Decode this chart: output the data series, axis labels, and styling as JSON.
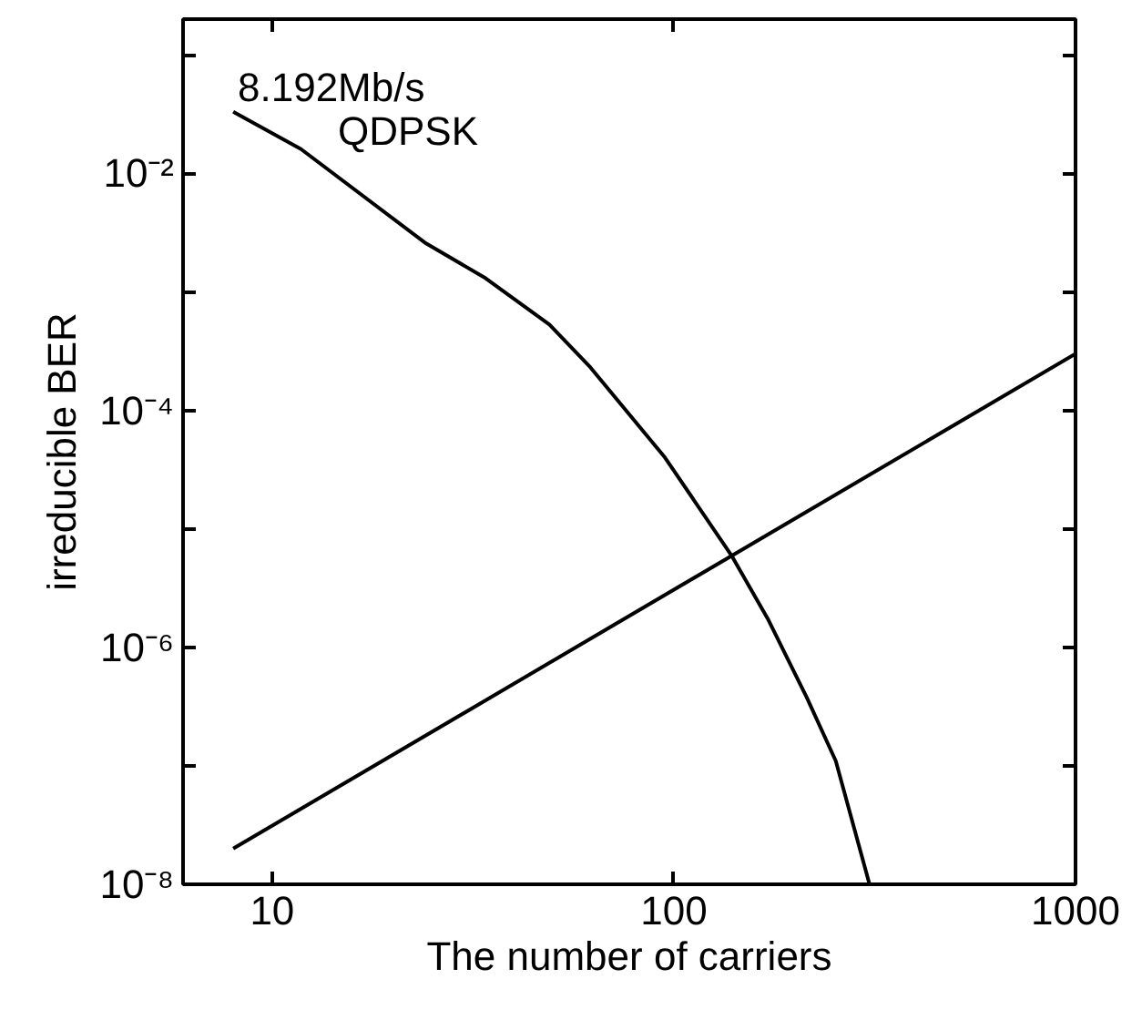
{
  "chart_data": {
    "type": "line",
    "xlabel": "The number of carriers",
    "ylabel": "irreducible BER",
    "annotations": [
      "8.192Mb/s",
      "QDPSK"
    ],
    "log": "xy",
    "grid": false,
    "marker": "none",
    "line_style": "solid",
    "xlim": [
      6,
      1000
    ],
    "xticks": [
      10,
      100,
      1000
    ],
    "ylim": [
      1e-08,
      0.2
    ],
    "yticks": [
      {
        "value": 1e-08,
        "label": "10⁻⁸"
      },
      {
        "value": 1e-07,
        "label": null
      },
      {
        "value": 1e-06,
        "label": "10⁻⁶"
      },
      {
        "value": 1e-05,
        "label": null
      },
      {
        "value": 0.0001,
        "label": "10⁻⁴"
      },
      {
        "value": 0.001,
        "label": null
      },
      {
        "value": 0.01,
        "label": "10⁻²"
      },
      {
        "value": 0.1,
        "label": null
      }
    ],
    "series": [
      {
        "color": "#000000",
        "x": [
          8,
          11.8,
          24,
          34,
          49,
          62,
          95,
          139,
          172,
          214,
          253,
          307
        ],
        "values": [
          0.033,
          0.016,
          0.0026,
          0.0013,
          0.00053,
          0.00023,
          4e-05,
          6e-06,
          1.7e-06,
          3.8e-07,
          1.1e-07,
          1e-08
        ]
      },
      {
        "color": "#000000",
        "x": [
          8,
          1000
        ],
        "values": [
          2e-08,
          0.0003
        ]
      }
    ]
  }
}
